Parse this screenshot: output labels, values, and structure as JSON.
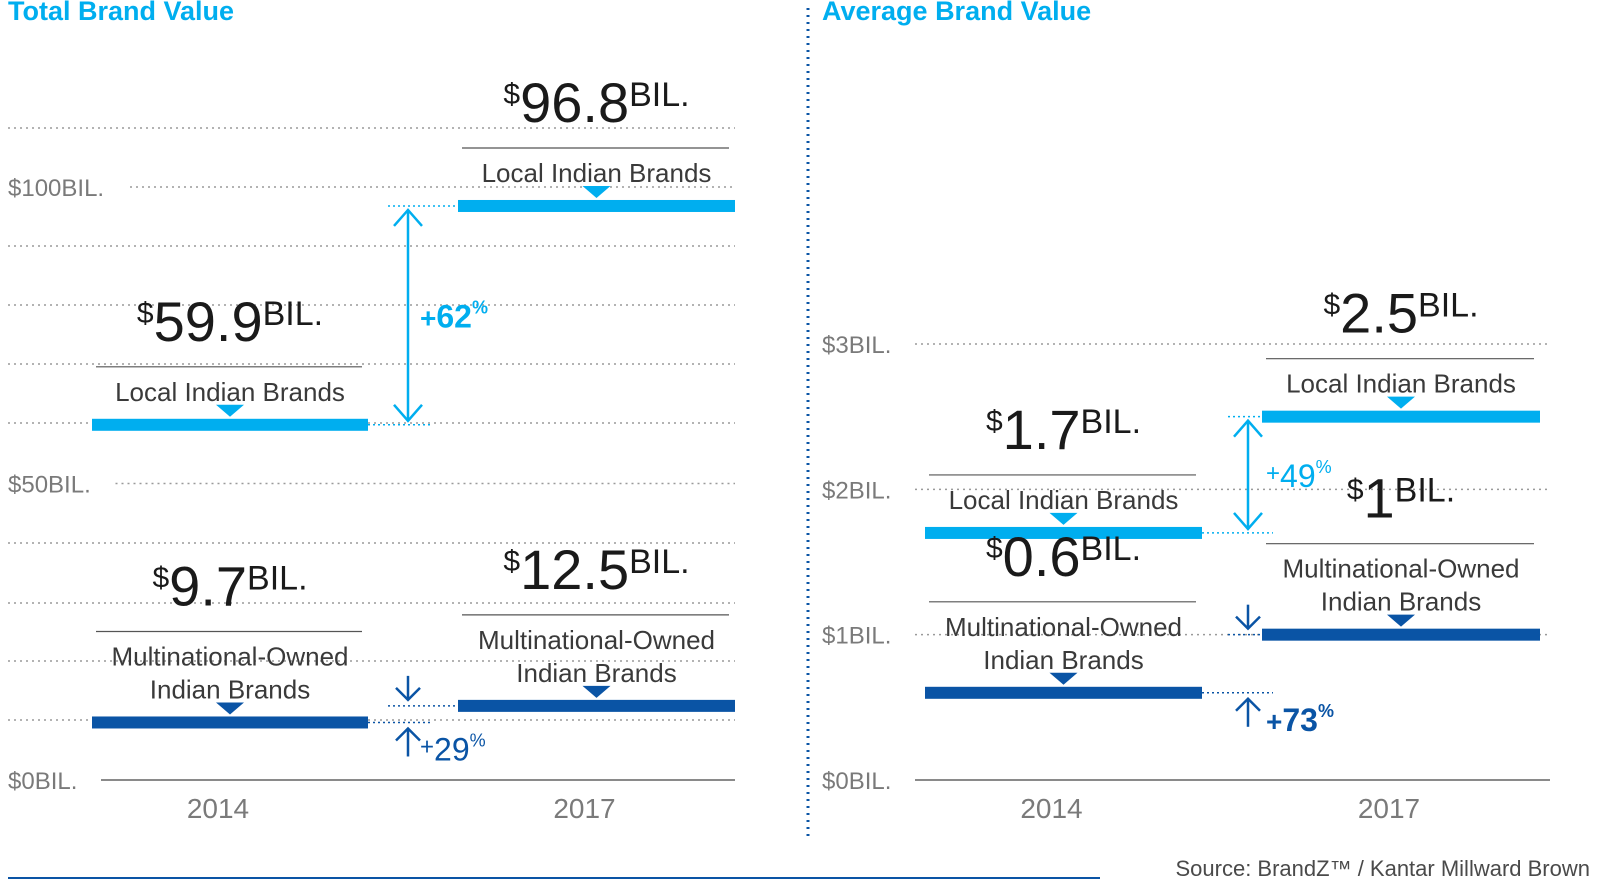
{
  "source": "Source: BrandZ™ / Kantar Millward Brown",
  "colors": {
    "local": "#00aeef",
    "multinational": "#0a54a5",
    "grid": "#9a9a9a",
    "divider": "#0a54a5"
  },
  "chart_data": [
    {
      "type": "bar",
      "title": "Total Brand Value",
      "categories": [
        "2014",
        "2017"
      ],
      "ylim": [
        0,
        110
      ],
      "y_ticks": [
        {
          "value": 0,
          "label": "$0BIL."
        },
        {
          "value": 50,
          "label": "$50BIL."
        },
        {
          "value": 100,
          "label": "$100BIL."
        }
      ],
      "grid": true,
      "series": [
        {
          "name": "Local Indian Brands",
          "color": "#00aeef",
          "values": [
            59.9,
            96.8
          ],
          "value_labels": [
            {
              "sym": "$",
              "num": "59.9",
              "unit": "BIL."
            },
            {
              "sym": "$",
              "num": "96.8",
              "unit": "BIL."
            }
          ],
          "category_labels": [
            [
              "Local Indian Brands"
            ],
            [
              "Local Indian Brands"
            ]
          ],
          "change": {
            "sign": "+",
            "num": "62",
            "pct": "%",
            "bold": true
          }
        },
        {
          "name": "Multinational-Owned Indian Brands",
          "color": "#0a54a5",
          "values": [
            9.7,
            12.5
          ],
          "value_labels": [
            {
              "sym": "$",
              "num": "9.7",
              "unit": "BIL."
            },
            {
              "sym": "$",
              "num": "12.5",
              "unit": "BIL."
            }
          ],
          "category_labels": [
            [
              "Multinational-Owned",
              "Indian Brands"
            ],
            [
              "Multinational-Owned",
              "Indian Brands"
            ]
          ],
          "change": {
            "sign": "+",
            "num": "29",
            "pct": "%",
            "bold": false
          }
        }
      ]
    },
    {
      "type": "bar",
      "title": "Average Brand Value",
      "categories": [
        "2014",
        "2017"
      ],
      "ylim": [
        0,
        3.2
      ],
      "y_ticks": [
        {
          "value": 0,
          "label": "$0BIL."
        },
        {
          "value": 1,
          "label": "$1BIL."
        },
        {
          "value": 2,
          "label": "$2BIL."
        },
        {
          "value": 3,
          "label": "$3BIL."
        }
      ],
      "grid": true,
      "series": [
        {
          "name": "Local Indian Brands",
          "color": "#00aeef",
          "values": [
            1.7,
            2.5
          ],
          "value_labels": [
            {
              "sym": "$",
              "num": "1.7",
              "unit": "BIL."
            },
            {
              "sym": "$",
              "num": "2.5",
              "unit": "BIL."
            }
          ],
          "category_labels": [
            [
              "Local Indian Brands"
            ],
            [
              "Local Indian Brands"
            ]
          ],
          "change": {
            "sign": "+",
            "num": "49",
            "pct": "%",
            "bold": false
          }
        },
        {
          "name": "Multinational-Owned Indian Brands",
          "color": "#0a54a5",
          "values": [
            0.6,
            1
          ],
          "value_labels": [
            {
              "sym": "$",
              "num": "0.6",
              "unit": "BIL."
            },
            {
              "sym": "$",
              "num": "1",
              "unit": "BIL."
            }
          ],
          "category_labels": [
            [
              "Multinational-Owned",
              "Indian Brands"
            ],
            [
              "Multinational-Owned",
              "Indian Brands"
            ]
          ],
          "change": {
            "sign": "+",
            "num": "73",
            "pct": "%",
            "bold": true
          }
        }
      ]
    }
  ]
}
